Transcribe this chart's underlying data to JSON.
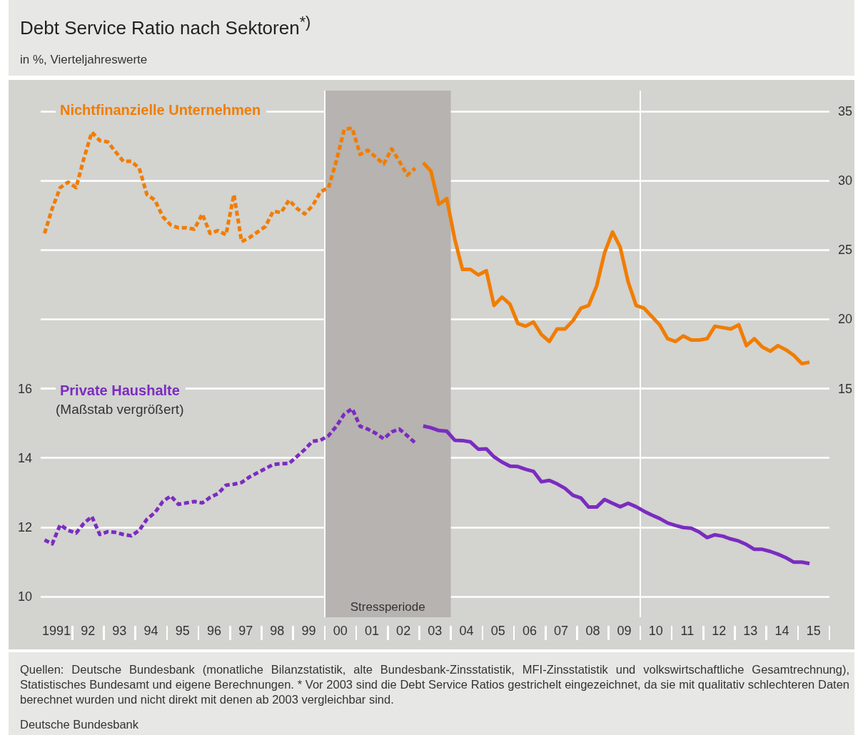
{
  "chart_data": {
    "type": "line",
    "title": "Debt Service Ratio nach Sektoren$^{*)}$",
    "subtitle": "in %, Vierteljahreswerte",
    "annotations": [
      "(Maßstab vergrößert)",
      "Quellen: Deutsche Bundesbank (monatliche Bilanzstatistik, alte Bundesbank-Zinsstatistik, MFI-Zinsstatistik und volkswirtschaftliche Gesamtrechnung), Statistisches Bundesamt und eigene Berechnungen. * Vor 2003 sind die Debt Service Ratios gestrichelt eingezeichnet, da sie mit qualitativ schlechteren Daten berechnet wurden und nicht direkt mit denen ab 2003 vergleichbar sind.",
      "Deutsche Bundesbank"
    ],
    "x": [
      "1991-02-15",
      "1991-05-15",
      "1991-08-15",
      "1991-11-15",
      "1992-02-15",
      "1992-05-15",
      "1992-08-15",
      "1992-11-15",
      "1993-02-15",
      "1993-05-15",
      "1993-08-15",
      "1993-11-15",
      "1994-02-15",
      "1994-05-15",
      "1994-08-15",
      "1994-11-15",
      "1995-02-15",
      "1995-05-15",
      "1995-08-15",
      "1995-11-15",
      "1996-02-15",
      "1996-05-15",
      "1996-08-15",
      "1996-11-15",
      "1997-02-15",
      "1997-05-15",
      "1997-08-15",
      "1997-11-15",
      "1998-02-15",
      "1998-05-15",
      "1998-08-15",
      "1998-11-15",
      "1999-02-15",
      "1999-05-15",
      "1999-08-15",
      "1999-11-15",
      "2000-02-15",
      "2000-05-15",
      "2000-08-15",
      "2000-11-15",
      "2001-02-15",
      "2001-05-15",
      "2001-08-15",
      "2001-11-15",
      "2002-02-15",
      "2002-05-15",
      "2002-08-15",
      "2002-11-15",
      "2003-02-15",
      "2003-05-15",
      "2003-08-15",
      "2003-11-15",
      "2004-02-15",
      "2004-05-15",
      "2004-08-15",
      "2004-11-15",
      "2005-02-15",
      "2005-05-15",
      "2005-08-15",
      "2005-11-15",
      "2006-02-15",
      "2006-05-15",
      "2006-08-15",
      "2006-11-15",
      "2007-02-15",
      "2007-05-15",
      "2007-08-15",
      "2007-11-15",
      "2008-02-15",
      "2008-05-15",
      "2008-08-15",
      "2008-11-15",
      "2009-02-15",
      "2009-05-15",
      "2009-08-15",
      "2009-11-15",
      "2010-02-15",
      "2010-05-15",
      "2010-08-15",
      "2010-11-15",
      "2011-02-15",
      "2011-05-15",
      "2011-08-15",
      "2011-11-15",
      "2012-02-15",
      "2012-05-15",
      "2012-08-15",
      "2012-11-15",
      "2013-02-15",
      "2013-05-15",
      "2013-08-15",
      "2013-11-15",
      "2014-02-15",
      "2014-05-15",
      "2014-08-15",
      "2014-11-15",
      "2015-02-15",
      "2015-05-15"
    ],
    "series": [
      {
        "name": "Nichtfinanzielle Unternehmen",
        "color": "#f07d00",
        "axis": "y2",
        "line_style": "dashed",
        "values": [
          26.2,
          28.0,
          29.5,
          29.9,
          29.5,
          31.6,
          33.5,
          32.9,
          32.8,
          32.1,
          31.4,
          31.4,
          30.9,
          29.0,
          28.6,
          27.4,
          26.8,
          26.6,
          26.6,
          26.5,
          27.6,
          26.2,
          26.4,
          26.1,
          29.0,
          25.6,
          25.9,
          26.3,
          26.7,
          27.8,
          27.7,
          28.6,
          28.0,
          27.6,
          28.2,
          29.2,
          29.5,
          31.4,
          33.7,
          33.8,
          31.9,
          32.2,
          31.7,
          31.2,
          32.3,
          31.4,
          30.4,
          30.9,
          null,
          null,
          null,
          null,
          null,
          null,
          null,
          null,
          null,
          null,
          null,
          null,
          null,
          null,
          null,
          null,
          null,
          null,
          null,
          null,
          null,
          null,
          null,
          null,
          null,
          null,
          null,
          null,
          null,
          null,
          null,
          null,
          null,
          null,
          null,
          null,
          null,
          null,
          null,
          null,
          null,
          null,
          null,
          null,
          null,
          null,
          null,
          null,
          null,
          null
        ]
      },
      {
        "color": "#f07d00",
        "axis": "y2",
        "line_style": "solid",
        "values": [
          null,
          null,
          null,
          null,
          null,
          null,
          null,
          null,
          null,
          null,
          null,
          null,
          null,
          null,
          null,
          null,
          null,
          null,
          null,
          null,
          null,
          null,
          null,
          null,
          null,
          null,
          null,
          null,
          null,
          null,
          null,
          null,
          null,
          null,
          null,
          null,
          null,
          null,
          null,
          null,
          null,
          null,
          null,
          null,
          null,
          null,
          null,
          null,
          31.3,
          30.7,
          28.3,
          28.7,
          25.8,
          23.6,
          23.6,
          23.2,
          23.5,
          21.0,
          21.6,
          21.1,
          19.7,
          19.5,
          19.8,
          18.9,
          18.4,
          19.3,
          19.3,
          19.9,
          20.8,
          21.0,
          22.4,
          24.8,
          26.3,
          25.2,
          22.7,
          21.0,
          20.8,
          20.2,
          19.6,
          18.6,
          18.4,
          18.8,
          18.5,
          18.5,
          18.6,
          19.5,
          19.4,
          19.3,
          19.6,
          18.1,
          18.6,
          18.0,
          17.7,
          18.1,
          17.8,
          17.4,
          16.8,
          16.9
        ]
      },
      {
        "name": "Private Haushalte",
        "color": "#7b2cc0",
        "line_style": "dashed",
        "values": [
          11.63,
          11.52,
          12.07,
          11.91,
          11.83,
          12.11,
          12.31,
          11.79,
          11.87,
          11.85,
          11.79,
          11.75,
          11.91,
          12.23,
          12.42,
          12.74,
          12.9,
          12.66,
          12.7,
          12.74,
          12.7,
          12.86,
          12.97,
          13.21,
          13.24,
          13.29,
          13.45,
          13.57,
          13.69,
          13.81,
          13.83,
          13.84,
          14.04,
          14.24,
          14.48,
          14.51,
          14.64,
          14.91,
          15.26,
          15.42,
          14.91,
          14.83,
          14.71,
          14.55,
          14.75,
          14.83,
          14.64,
          14.43,
          null,
          null,
          null,
          null,
          null,
          null,
          null,
          null,
          null,
          null,
          null,
          null,
          null,
          null,
          null,
          null,
          null,
          null,
          null,
          null,
          null,
          null,
          null,
          null,
          null,
          null,
          null,
          null,
          null,
          null,
          null,
          null,
          null,
          null,
          null,
          null,
          null,
          null,
          null,
          null,
          null,
          null,
          null,
          null,
          null,
          null,
          null,
          null,
          null,
          null
        ]
      },
      {
        "color": "#7b2cc0",
        "line_style": "solid",
        "values": [
          null,
          null,
          null,
          null,
          null,
          null,
          null,
          null,
          null,
          null,
          null,
          null,
          null,
          null,
          null,
          null,
          null,
          null,
          null,
          null,
          null,
          null,
          null,
          null,
          null,
          null,
          null,
          null,
          null,
          null,
          null,
          null,
          null,
          null,
          null,
          null,
          null,
          null,
          null,
          null,
          null,
          null,
          null,
          null,
          null,
          null,
          null,
          null,
          14.92,
          14.87,
          14.79,
          14.77,
          14.51,
          14.5,
          14.46,
          14.25,
          14.26,
          14.03,
          13.88,
          13.76,
          13.75,
          13.67,
          13.61,
          13.31,
          13.35,
          13.25,
          13.12,
          12.92,
          12.84,
          12.58,
          12.58,
          12.8,
          12.69,
          12.59,
          12.69,
          12.59,
          12.46,
          12.35,
          12.25,
          12.12,
          12.05,
          11.99,
          11.97,
          11.86,
          11.7,
          11.78,
          11.74,
          11.66,
          11.6,
          11.5,
          11.36,
          11.36,
          11.3,
          11.22,
          11.12,
          10.99,
          10.99,
          10.95
        ]
      }
    ],
    "xlim": [
      "1991",
      "2016"
    ],
    "xticks": [
      {
        "value": "1991-07-01",
        "label": "1991"
      },
      {
        "value": "1992-07-01",
        "label": "92"
      },
      {
        "value": "1993-07-01",
        "label": "93"
      },
      {
        "value": "1994-07-01",
        "label": "94"
      },
      {
        "value": "1995-07-01",
        "label": "95"
      },
      {
        "value": "1996-07-01",
        "label": "96"
      },
      {
        "value": "1997-07-01",
        "label": "97"
      },
      {
        "value": "1998-07-01",
        "label": "98"
      },
      {
        "value": "1999-07-01",
        "label": "99"
      },
      {
        "value": "2000-07-01",
        "label": "00"
      },
      {
        "value": "2001-07-01",
        "label": "01"
      },
      {
        "value": "2002-07-01",
        "label": "02"
      },
      {
        "value": "2003-07-01",
        "label": "03"
      },
      {
        "value": "2004-07-01",
        "label": "04"
      },
      {
        "value": "2005-07-01",
        "label": "05"
      },
      {
        "value": "2006-07-01",
        "label": "06"
      },
      {
        "value": "2007-07-01",
        "label": "07"
      },
      {
        "value": "2008-07-01",
        "label": "08"
      },
      {
        "value": "2009-07-01",
        "label": "09"
      },
      {
        "value": "2010-07-01",
        "label": "10"
      },
      {
        "value": "2011-07-01",
        "label": "11"
      },
      {
        "value": "2012-07-01",
        "label": "12"
      },
      {
        "value": "2013-07-01",
        "label": "13"
      },
      {
        "value": "2014-07-01",
        "label": "14"
      },
      {
        "value": "2015-07-01",
        "label": "15"
      }
    ],
    "ylim": [
      9.4,
      24.6
    ],
    "yticks": [
      10,
      12,
      14,
      16
    ],
    "y2lim": [
      -1.5,
      36.5
    ],
    "y2ticks": [
      15,
      20,
      25,
      30,
      35
    ],
    "ref_lines": [
      {
        "axis": "x",
        "value": "2000",
        "color": "#ffffff"
      },
      {
        "axis": "x",
        "value": "2010",
        "color": "#ffffff"
      }
    ],
    "bands": [
      {
        "axis": "x",
        "from": "2000",
        "to": "2004",
        "label": "Stressperiode",
        "color": "#b6b3b0"
      }
    ],
    "grid": "y",
    "legend": false
  }
}
